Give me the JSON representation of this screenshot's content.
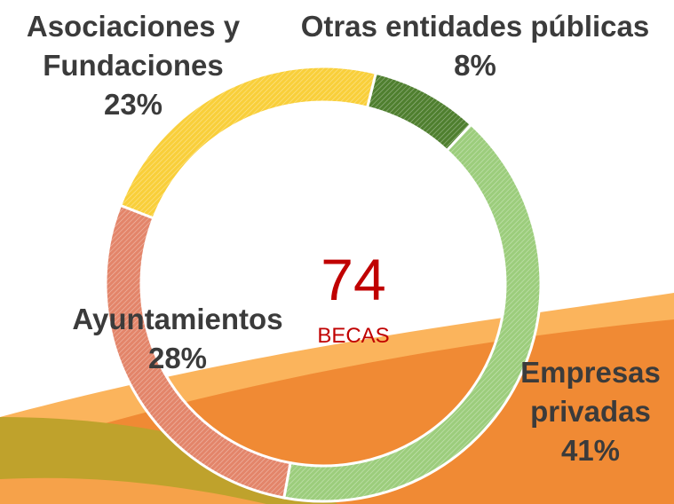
{
  "chart_data": {
    "type": "donut",
    "categories": [
      "Otras entidades públicas",
      "Empresas privadas",
      "Ayuntamientos",
      "Asociaciones y Fundaciones"
    ],
    "values": [
      8,
      41,
      28,
      23
    ],
    "value_labels": [
      "8%",
      "41%",
      "28%",
      "23%"
    ],
    "colors": [
      "#4f7f2f",
      "#9ccd7c",
      "#e3856a",
      "#f9cf3a"
    ],
    "center_value": 74,
    "center_label": "BECAS"
  }
}
